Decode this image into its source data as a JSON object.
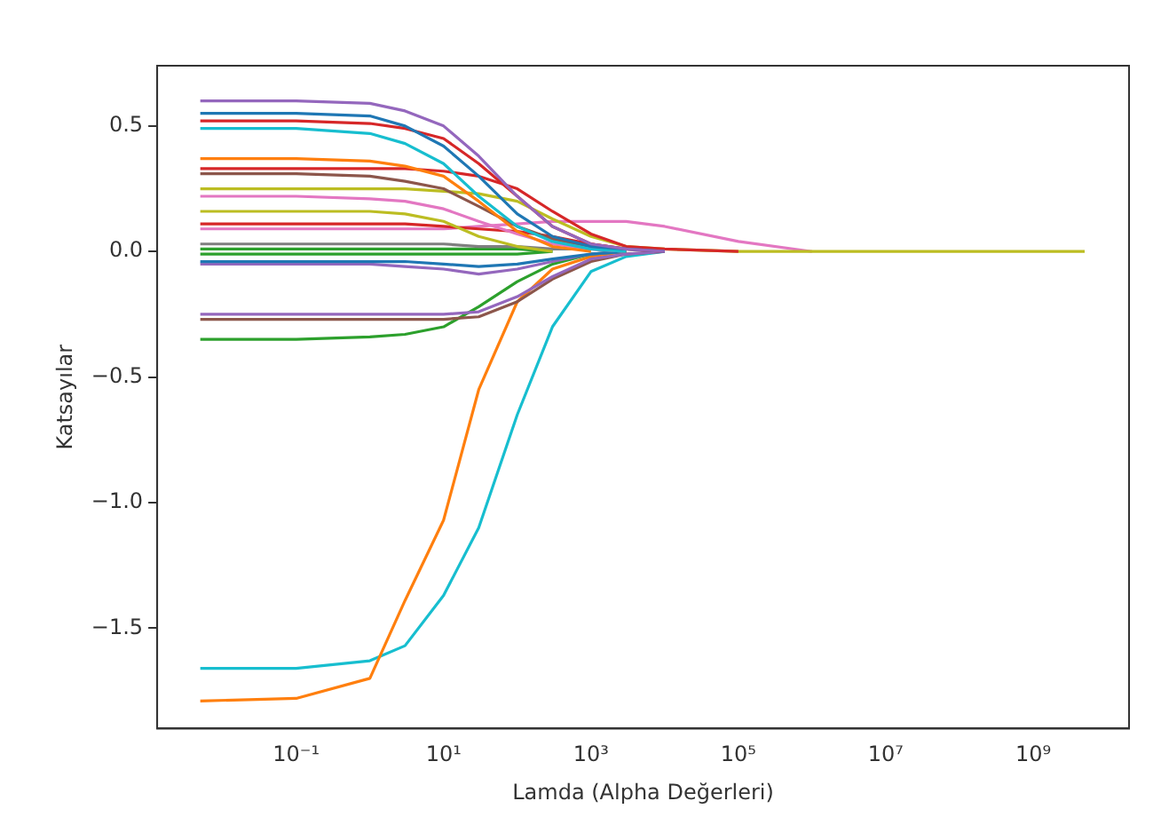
{
  "chart_data": {
    "type": "line",
    "xlabel": "Lamda (Alpha Değerleri)",
    "ylabel": "Katsayılar",
    "log": "x",
    "grid": false,
    "legend": false,
    "marker": "none",
    "line_style": "solid",
    "x": [
      0.005,
      0.1,
      1,
      3,
      10,
      30,
      100,
      300,
      1000,
      3000,
      10000,
      100000,
      1000000,
      5000000000
    ],
    "xlim": [
      0.0013,
      20000000000
    ],
    "xticks": [
      {
        "value": 0.1,
        "label": "10⁻¹"
      },
      {
        "value": 10,
        "label": "10¹"
      },
      {
        "value": 1000,
        "label": "10³"
      },
      {
        "value": 100000,
        "label": "10⁵"
      },
      {
        "value": 10000000,
        "label": "10⁷"
      },
      {
        "value": 1000000000,
        "label": "10⁹"
      }
    ],
    "ylim": [
      -1.9,
      0.74
    ],
    "yticks": [
      {
        "value": 0.5,
        "label": "0.5"
      },
      {
        "value": 0,
        "label": "0.0"
      },
      {
        "value": -0.5,
        "label": "−0.5"
      },
      {
        "value": -1,
        "label": "−1.0"
      },
      {
        "value": -1.5,
        "label": "−1.5"
      }
    ],
    "series": [
      {
        "color": "#9467bd",
        "values": [
          0.6,
          0.6,
          0.59,
          0.56,
          0.5,
          0.38,
          0.22,
          0.1,
          0.03,
          0.01,
          0,
          null,
          null,
          null
        ]
      },
      {
        "color": "#1f77b4",
        "values": [
          0.55,
          0.55,
          0.54,
          0.5,
          0.42,
          0.3,
          0.15,
          0.06,
          0.02,
          0.01,
          0,
          null,
          null,
          null
        ]
      },
      {
        "color": "#d62728",
        "values": [
          0.52,
          0.52,
          0.51,
          0.49,
          0.45,
          0.35,
          0.22,
          0.1,
          0.03,
          0.01,
          0,
          null,
          null,
          null
        ]
      },
      {
        "color": "#17becf",
        "values": [
          0.49,
          0.49,
          0.47,
          0.43,
          0.35,
          0.22,
          0.1,
          0.04,
          0.01,
          0,
          null,
          null,
          null,
          null
        ]
      },
      {
        "color": "#ff7f0e",
        "values": [
          0.37,
          0.37,
          0.36,
          0.34,
          0.3,
          0.2,
          0.08,
          0.02,
          0,
          null,
          null,
          null,
          null,
          null
        ]
      },
      {
        "color": "#d62728",
        "values": [
          0.33,
          0.33,
          0.33,
          0.33,
          0.32,
          0.3,
          0.25,
          0.16,
          0.07,
          0.02,
          0.01,
          0,
          null,
          null
        ]
      },
      {
        "color": "#8c564b",
        "values": [
          0.31,
          0.31,
          0.3,
          0.28,
          0.25,
          0.18,
          0.1,
          0.05,
          0.02,
          0,
          null,
          null,
          null,
          null
        ]
      },
      {
        "color": "#bcbd22",
        "values": [
          0.25,
          0.25,
          0.25,
          0.25,
          0.24,
          0.23,
          0.2,
          0.13,
          0.06,
          0.02,
          0.01,
          0,
          0,
          0
        ]
      },
      {
        "color": "#e377c2",
        "values": [
          0.22,
          0.22,
          0.21,
          0.2,
          0.17,
          0.12,
          0.07,
          0.03,
          0.01,
          0,
          null,
          null,
          null,
          null
        ]
      },
      {
        "color": "#bcbd22",
        "values": [
          0.16,
          0.16,
          0.16,
          0.15,
          0.12,
          0.06,
          0.02,
          0,
          null,
          null,
          null,
          null,
          null,
          null
        ]
      },
      {
        "color": "#d62728",
        "values": [
          0.11,
          0.11,
          0.11,
          0.11,
          0.1,
          0.09,
          0.08,
          0.06,
          0.03,
          0.01,
          0,
          null,
          null,
          null
        ]
      },
      {
        "color": "#e377c2",
        "values": [
          0.09,
          0.09,
          0.09,
          0.09,
          0.09,
          0.1,
          0.11,
          0.12,
          0.12,
          0.12,
          0.1,
          0.04,
          0,
          null
        ]
      },
      {
        "color": "#7f7f7f",
        "values": [
          0.03,
          0.03,
          0.03,
          0.03,
          0.03,
          0.02,
          0.02,
          0.01,
          0.01,
          0,
          null,
          null,
          null,
          null
        ]
      },
      {
        "color": "#2ca02c",
        "values": [
          0.01,
          0.01,
          0.01,
          0.01,
          0.01,
          0.01,
          0.01,
          0,
          null,
          null,
          null,
          null,
          null,
          null
        ]
      },
      {
        "color": "#2ca02c",
        "values": [
          -0.01,
          -0.01,
          -0.01,
          -0.01,
          -0.01,
          -0.01,
          -0.01,
          0,
          null,
          null,
          null,
          null,
          null,
          null
        ]
      },
      {
        "color": "#1f77b4",
        "values": [
          -0.04,
          -0.04,
          -0.04,
          -0.04,
          -0.05,
          -0.06,
          -0.05,
          -0.03,
          -0.01,
          0,
          null,
          null,
          null,
          null
        ]
      },
      {
        "color": "#9467bd",
        "values": [
          -0.05,
          -0.05,
          -0.05,
          -0.06,
          -0.07,
          -0.09,
          -0.07,
          -0.04,
          -0.01,
          0,
          null,
          null,
          null,
          null
        ]
      },
      {
        "color": "#9467bd",
        "values": [
          -0.25,
          -0.25,
          -0.25,
          -0.25,
          -0.25,
          -0.24,
          -0.18,
          -0.1,
          -0.03,
          -0.01,
          0,
          null,
          null,
          null
        ]
      },
      {
        "color": "#8c564b",
        "values": [
          -0.27,
          -0.27,
          -0.27,
          -0.27,
          -0.27,
          -0.26,
          -0.2,
          -0.11,
          -0.04,
          -0.01,
          0,
          null,
          null,
          null
        ]
      },
      {
        "color": "#2ca02c",
        "values": [
          -0.35,
          -0.35,
          -0.34,
          -0.33,
          -0.3,
          -0.22,
          -0.12,
          -0.05,
          -0.01,
          0,
          null,
          null,
          null,
          null
        ]
      },
      {
        "color": "#ff7f0e",
        "values": [
          -1.79,
          -1.78,
          -1.7,
          -1.39,
          -1.07,
          -0.55,
          -0.2,
          -0.07,
          -0.02,
          0,
          null,
          null,
          null,
          null
        ]
      },
      {
        "color": "#17becf",
        "values": [
          -1.66,
          -1.66,
          -1.63,
          -1.57,
          -1.37,
          -1.1,
          -0.65,
          -0.3,
          -0.08,
          -0.02,
          0,
          null,
          null,
          null
        ]
      }
    ]
  }
}
